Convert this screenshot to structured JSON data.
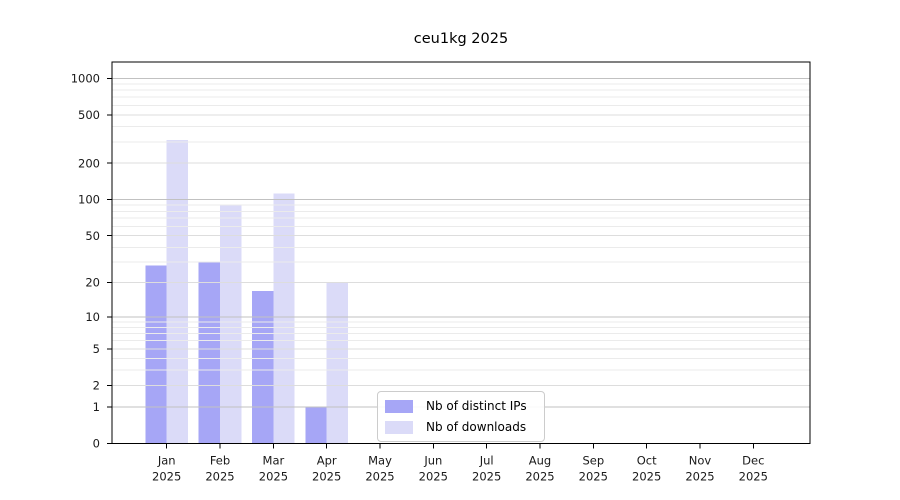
{
  "chart_data": {
    "type": "bar",
    "title": "ceu1kg 2025",
    "categories": [
      "Jan",
      "Feb",
      "Mar",
      "Apr",
      "May",
      "Jun",
      "Jul",
      "Aug",
      "Sep",
      "Oct",
      "Nov",
      "Dec"
    ],
    "x_tick_year": "2025",
    "series": [
      {
        "name": "Nb of distinct IPs",
        "color": "#a6a6f6",
        "values": [
          28,
          30,
          17,
          1,
          0,
          0,
          0,
          0,
          0,
          0,
          0,
          0
        ]
      },
      {
        "name": "Nb of downloads",
        "color": "#dbdbf8",
        "values": [
          310,
          90,
          112,
          20,
          0,
          0,
          0,
          0,
          0,
          0,
          0,
          0
        ]
      }
    ],
    "yscale": "log1p",
    "y_ticks": [
      0,
      1,
      2,
      5,
      10,
      20,
      50,
      100,
      200,
      500,
      1000
    ],
    "ylim": [
      0,
      1360
    ],
    "xlabel": "",
    "ylabel": "",
    "grid": "both",
    "legend_position": "lower center-left inside plot"
  },
  "colors": {
    "grid_decade": "#c1c1c1",
    "grid_labeled": "#dddddd",
    "grid_minor": "#ebebeb",
    "axis": "#000000",
    "text": "#1a1a1a",
    "legend_border": "#cccccc",
    "background": "#ffffff"
  }
}
